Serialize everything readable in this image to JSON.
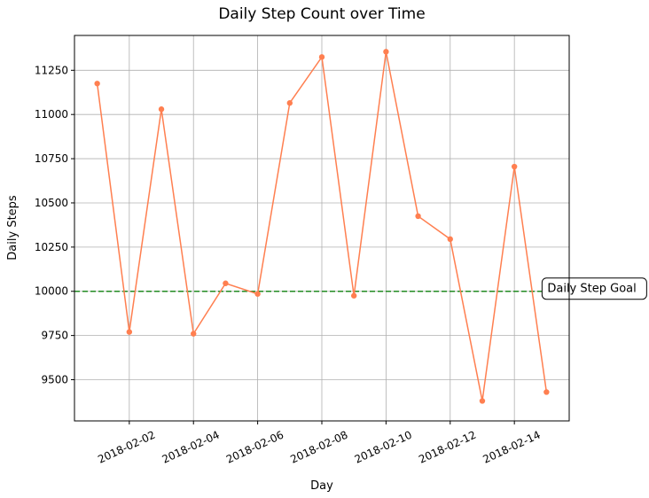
{
  "chart_data": {
    "type": "line",
    "title": "Daily Step Count over Time",
    "xlabel": "Day",
    "ylabel": "Daily Steps",
    "x": [
      "2018-02-01",
      "2018-02-02",
      "2018-02-03",
      "2018-02-04",
      "2018-02-05",
      "2018-02-06",
      "2018-02-07",
      "2018-02-08",
      "2018-02-09",
      "2018-02-10",
      "2018-02-11",
      "2018-02-12",
      "2018-02-13",
      "2018-02-14",
      "2018-02-15"
    ],
    "series": [
      {
        "values": [
          11175,
          9770,
          11030,
          9760,
          10045,
          9985,
          11065,
          11325,
          9975,
          11355,
          10425,
          10295,
          9380,
          10705,
          9430
        ]
      }
    ],
    "x_ticks": [
      "2018-02-02",
      "2018-02-04",
      "2018-02-06",
      "2018-02-08",
      "2018-02-10",
      "2018-02-12",
      "2018-02-14"
    ],
    "x_tick_labels": [
      "2018-02-02",
      "2018-02-04",
      "2018-02-06",
      "2018-02-08",
      "2018-02-10",
      "2018-02-12",
      "2018-02-14"
    ],
    "x_range": [
      "2018-01-31T07:00",
      "2018-02-15T17:00"
    ],
    "ylim": [
      9267,
      11447
    ],
    "y_ticks": [
      9500,
      9750,
      10000,
      10250,
      10500,
      10750,
      11000,
      11250
    ],
    "y_tick_labels": [
      "9500",
      "9750",
      "10000",
      "10250",
      "10500",
      "10750",
      "11000",
      "11250"
    ],
    "grid": true,
    "goal": {
      "value": 10000,
      "label": "Daily Step Goal"
    },
    "colors": {
      "line": "#ff7f50",
      "goal": "#228b22"
    }
  }
}
